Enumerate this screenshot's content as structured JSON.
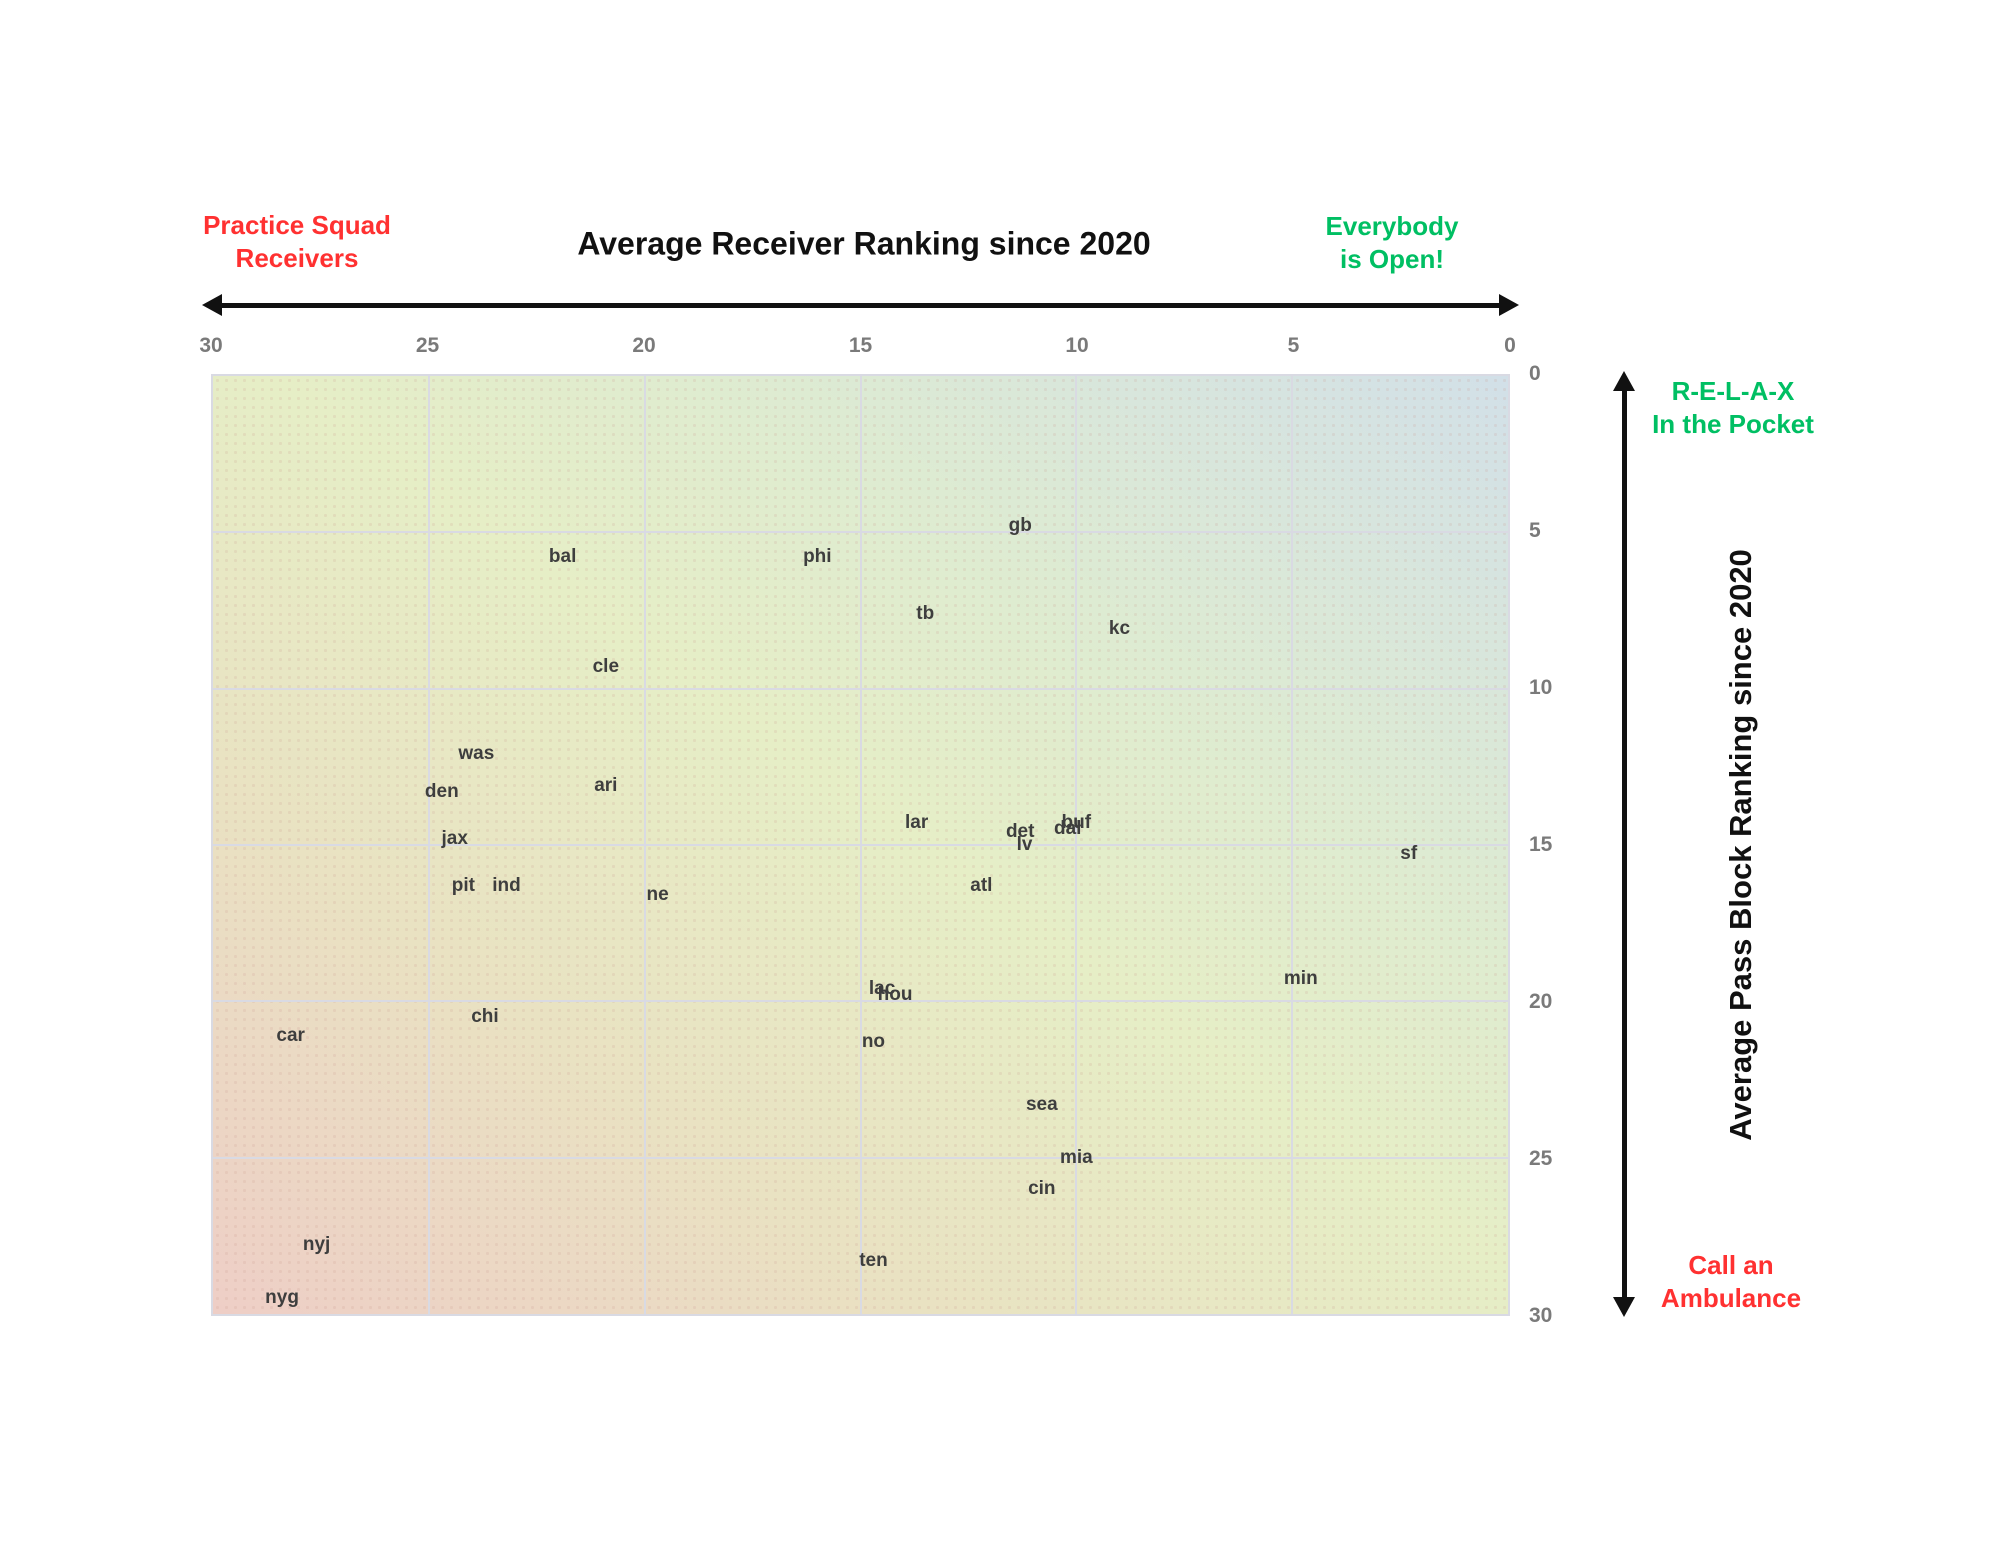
{
  "header": {
    "title": "Average Receiver Ranking since 2020",
    "left_annotation": "Practice Squad\nReceivers",
    "right_annotation": "Everybody\nis Open!"
  },
  "side_panel": {
    "top_annotation": "R-E-L-A-X\nIn the Pocket",
    "bottom_annotation": "Call an\nAmbulance",
    "y_axis_label": "Average Pass Block Ranking since 2020"
  },
  "colors": {
    "annotation_red": "#ff3131",
    "annotation_green": "#00bf63",
    "tick_gray": "#7a7a7a",
    "team_label": "#3e3e3e",
    "gridline": "#d9dae3",
    "arrow_black": "#111111",
    "bg_top_right_blue": "#d2e0e8",
    "bg_middle_green": "#e6eec6",
    "bg_bottom_left_pink": "#eecec6"
  },
  "chart_data": {
    "type": "scatter",
    "title": "Average Receiver Ranking since 2020",
    "xlabel": "Average Receiver Ranking since 2020",
    "ylabel": "Average Pass Block Ranking since 2020",
    "x_ticks": [
      30,
      25,
      20,
      15,
      10,
      5,
      0
    ],
    "y_ticks": [
      0,
      5,
      10,
      15,
      20,
      25,
      30
    ],
    "xlim": [
      30,
      0
    ],
    "ylim": [
      0,
      30
    ],
    "x_axis_reversed": true,
    "y_axis_inverted": true,
    "grid": true,
    "points": [
      {
        "label": "gb",
        "x": 11.3,
        "y": 4.8
      },
      {
        "label": "bal",
        "x": 21.9,
        "y": 5.8
      },
      {
        "label": "phi",
        "x": 16.0,
        "y": 5.8
      },
      {
        "label": "tb",
        "x": 13.5,
        "y": 7.6
      },
      {
        "label": "kc",
        "x": 9.0,
        "y": 8.1
      },
      {
        "label": "cle",
        "x": 20.9,
        "y": 9.3
      },
      {
        "label": "was",
        "x": 23.9,
        "y": 12.1
      },
      {
        "label": "ari",
        "x": 20.9,
        "y": 13.1
      },
      {
        "label": "den",
        "x": 24.7,
        "y": 13.3
      },
      {
        "label": "lar",
        "x": 13.7,
        "y": 14.3
      },
      {
        "label": "buf",
        "x": 10.0,
        "y": 14.3
      },
      {
        "label": "dal",
        "x": 10.2,
        "y": 14.5
      },
      {
        "label": "det",
        "x": 11.3,
        "y": 14.6
      },
      {
        "label": "jax",
        "x": 24.4,
        "y": 14.8
      },
      {
        "label": "lv",
        "x": 11.2,
        "y": 15.0
      },
      {
        "label": "sf",
        "x": 2.3,
        "y": 15.3
      },
      {
        "label": "pit",
        "x": 24.2,
        "y": 16.3
      },
      {
        "label": "ind",
        "x": 23.2,
        "y": 16.3
      },
      {
        "label": "atl",
        "x": 12.2,
        "y": 16.3
      },
      {
        "label": "ne",
        "x": 19.7,
        "y": 16.6
      },
      {
        "label": "min",
        "x": 4.8,
        "y": 19.3
      },
      {
        "label": "lac",
        "x": 14.5,
        "y": 19.6
      },
      {
        "label": "hou",
        "x": 14.2,
        "y": 19.8
      },
      {
        "label": "chi",
        "x": 23.7,
        "y": 20.5
      },
      {
        "label": "car",
        "x": 28.2,
        "y": 21.1
      },
      {
        "label": "no",
        "x": 14.7,
        "y": 21.3
      },
      {
        "label": "sea",
        "x": 10.8,
        "y": 23.3
      },
      {
        "label": "mia",
        "x": 10.0,
        "y": 25.0
      },
      {
        "label": "cin",
        "x": 10.8,
        "y": 26.0
      },
      {
        "label": "nyj",
        "x": 27.6,
        "y": 27.8
      },
      {
        "label": "ten",
        "x": 14.7,
        "y": 28.3
      },
      {
        "label": "nyg",
        "x": 28.4,
        "y": 29.5
      }
    ]
  }
}
